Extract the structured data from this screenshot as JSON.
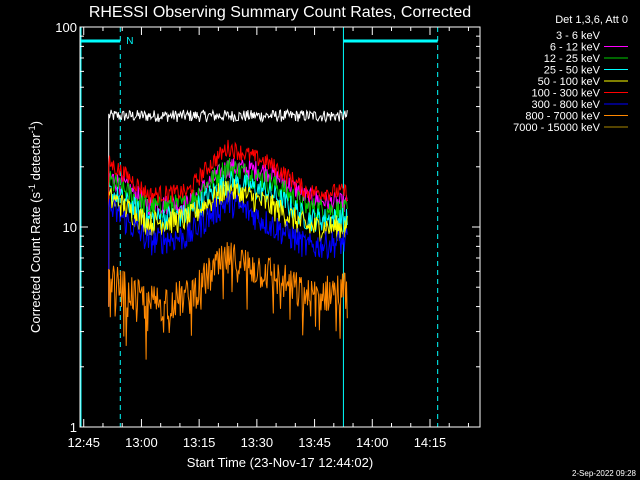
{
  "chart_data": {
    "type": "line",
    "title": "RHESSI Observing Summary Count Rates, Corrected",
    "xlabel": "Start Time (23-Nov-17 12:44:02)",
    "ylabel_main": "Corrected Count Rate (s",
    "ylabel_sup1": "-1",
    "ylabel_mid": " detector",
    "ylabel_sup2": "-1",
    "ylabel_end": ")",
    "yscale": "log",
    "ylim": [
      1,
      100
    ],
    "y_ticks": [
      "1",
      "10",
      "100"
    ],
    "x_ticks": [
      "12:45",
      "13:00",
      "13:15",
      "13:30",
      "13:45",
      "14:00",
      "14:15"
    ],
    "x_tick_minutes": [
      45,
      60,
      75,
      90,
      105,
      120,
      135
    ],
    "xlim_minutes": [
      44.03,
      148
    ],
    "data_start_minute": 51.5,
    "data_end_minute": 113.5,
    "legend_header": "Det 1,3,6, Att 0",
    "attenuator_label": "N",
    "night_start_minute": 54.5,
    "day_start_minute": 112.5,
    "night_bar_end_minute": 54.5,
    "day_bar_right_minute": 137.0,
    "series": [
      {
        "name": "3 - 6 keV",
        "color": "#000000",
        "draw_color": "#ffffff",
        "base": [
          36,
          36,
          36,
          36,
          36,
          36,
          36
        ],
        "noise": 0.07
      },
      {
        "name": "6 - 12 keV",
        "color": "#ff00ff",
        "base": [
          18,
          13,
          13,
          20,
          19,
          14,
          13
        ],
        "noise": 0.12
      },
      {
        "name": "12 - 25 keV",
        "color": "#00cc00",
        "base": [
          17,
          12.5,
          13,
          20,
          17,
          12.5,
          12
        ],
        "noise": 0.14
      },
      {
        "name": "25 - 50 keV",
        "color": "#00ffff",
        "base": [
          15,
          11,
          11.5,
          17,
          15,
          11,
          11
        ],
        "noise": 0.14
      },
      {
        "name": "50 - 100 keV",
        "color": "#ffff00",
        "base": [
          14,
          10.5,
          11,
          15.5,
          13,
          10,
          10
        ],
        "noise": 0.15
      },
      {
        "name": "100 - 300 keV",
        "color": "#ff0000",
        "base": [
          21,
          14.5,
          15,
          25,
          21,
          15,
          15
        ],
        "noise": 0.1
      },
      {
        "name": "300 - 800 keV",
        "color": "#0000ff",
        "base": [
          12.5,
          8.5,
          9,
          13.5,
          10.5,
          8,
          8.5
        ],
        "noise": 0.16
      },
      {
        "name": "800 - 7000 keV",
        "color": "#ff8800",
        "base": [
          5.5,
          4.2,
          4.5,
          7,
          6,
          4.5,
          5
        ],
        "noise": 0.22
      },
      {
        "name": "7000 - 15000 keV",
        "color": "#aa8800",
        "base": [
          0,
          0,
          0,
          0,
          0,
          0,
          0
        ],
        "noise": 0
      }
    ]
  },
  "footer": {
    "timestamp": "2-Sep-2022 09:28"
  }
}
